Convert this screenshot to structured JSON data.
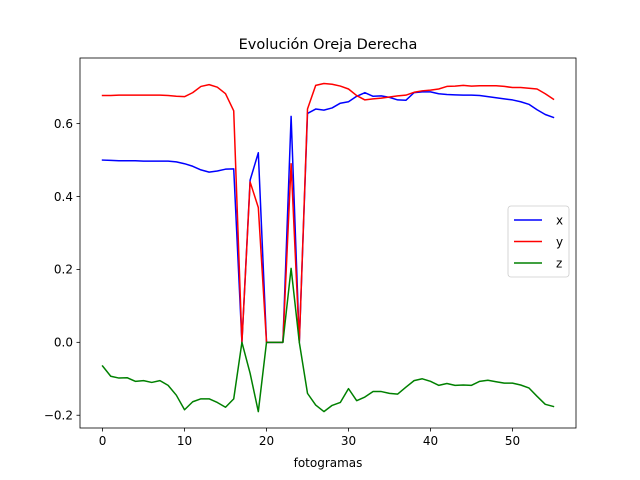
{
  "chart_data": {
    "type": "line",
    "title": "Evolución Oreja Derecha",
    "xlabel": "fotogramas",
    "ylabel": "",
    "xlim": [
      -2.75,
      57.75
    ],
    "ylim": [
      -0.235,
      0.78
    ],
    "xticks": [
      0,
      10,
      20,
      30,
      40,
      50
    ],
    "yticks": [
      -0.2,
      0.0,
      0.2,
      0.4,
      0.6
    ],
    "ytick_labels": [
      "−0.2",
      "0.0",
      "0.2",
      "0.4",
      "0.6"
    ],
    "grid": false,
    "legend_position": "center-right",
    "x": [
      0,
      1,
      2,
      3,
      4,
      5,
      6,
      7,
      8,
      9,
      10,
      11,
      12,
      13,
      14,
      15,
      16,
      17,
      18,
      19,
      20,
      21,
      22,
      23,
      24,
      25,
      26,
      27,
      28,
      29,
      30,
      31,
      32,
      33,
      34,
      35,
      36,
      37,
      38,
      39,
      40,
      41,
      42,
      43,
      44,
      45,
      46,
      47,
      48,
      49,
      50,
      51,
      52,
      53,
      54,
      55
    ],
    "series": [
      {
        "name": "x",
        "color": "#0000ff",
        "values": [
          0.5,
          0.499,
          0.498,
          0.498,
          0.498,
          0.497,
          0.497,
          0.497,
          0.497,
          0.495,
          0.49,
          0.483,
          0.473,
          0.467,
          0.47,
          0.475,
          0.476,
          0.0,
          0.445,
          0.52,
          0.0,
          0.0,
          0.0,
          0.62,
          0.0,
          0.628,
          0.64,
          0.637,
          0.643,
          0.656,
          0.66,
          0.675,
          0.685,
          0.675,
          0.676,
          0.672,
          0.665,
          0.664,
          0.685,
          0.687,
          0.687,
          0.682,
          0.68,
          0.679,
          0.678,
          0.678,
          0.677,
          0.674,
          0.671,
          0.668,
          0.665,
          0.66,
          0.653,
          0.638,
          0.625,
          0.617
        ]
      },
      {
        "name": "y",
        "color": "#ff0000",
        "values": [
          0.677,
          0.677,
          0.678,
          0.678,
          0.678,
          0.678,
          0.678,
          0.678,
          0.677,
          0.675,
          0.674,
          0.685,
          0.702,
          0.707,
          0.7,
          0.682,
          0.635,
          0.0,
          0.44,
          0.37,
          0.0,
          0.0,
          0.0,
          0.49,
          0.0,
          0.64,
          0.705,
          0.71,
          0.708,
          0.703,
          0.695,
          0.677,
          0.665,
          0.668,
          0.67,
          0.673,
          0.676,
          0.678,
          0.686,
          0.69,
          0.692,
          0.695,
          0.702,
          0.703,
          0.705,
          0.703,
          0.704,
          0.704,
          0.704,
          0.702,
          0.699,
          0.699,
          0.697,
          0.695,
          0.682,
          0.667
        ]
      },
      {
        "name": "z",
        "color": "#008000",
        "values": [
          -0.065,
          -0.093,
          -0.098,
          -0.097,
          -0.107,
          -0.105,
          -0.11,
          -0.105,
          -0.118,
          -0.145,
          -0.185,
          -0.163,
          -0.155,
          -0.155,
          -0.165,
          -0.178,
          -0.155,
          0.0,
          -0.085,
          -0.19,
          0.0,
          0.0,
          0.0,
          0.203,
          0.0,
          -0.14,
          -0.172,
          -0.19,
          -0.173,
          -0.165,
          -0.127,
          -0.16,
          -0.15,
          -0.135,
          -0.135,
          -0.14,
          -0.142,
          -0.123,
          -0.105,
          -0.1,
          -0.107,
          -0.118,
          -0.113,
          -0.118,
          -0.117,
          -0.118,
          -0.107,
          -0.104,
          -0.108,
          -0.112,
          -0.112,
          -0.117,
          -0.125,
          -0.148,
          -0.17,
          -0.176
        ]
      }
    ]
  }
}
